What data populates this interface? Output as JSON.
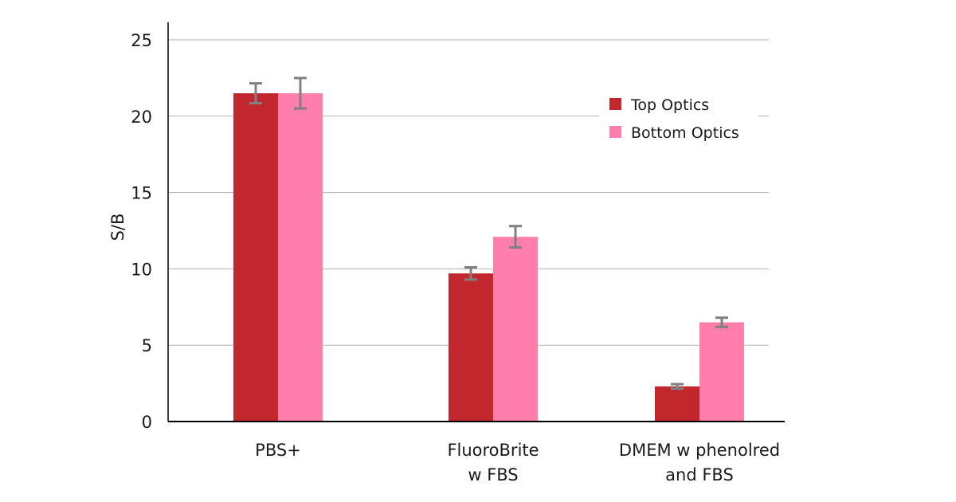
{
  "chart_data": {
    "type": "bar",
    "title": "",
    "xlabel": "",
    "ylabel": "S/B",
    "ylim": [
      0,
      25
    ],
    "yticks": [
      0,
      5,
      10,
      15,
      20,
      25
    ],
    "grid": true,
    "legend_position": "top-right",
    "categories": [
      [
        "PBS+"
      ],
      [
        "FluoroBrite",
        "w FBS"
      ],
      [
        "DMEM w phenolred",
        "and FBS"
      ]
    ],
    "series": [
      {
        "name": "Top Optics",
        "color": "#c1272d",
        "values": [
          21.5,
          9.7,
          2.3
        ],
        "errors": [
          0.65,
          0.4,
          0.15
        ]
      },
      {
        "name": "Bottom Optics",
        "color": "#ff7eab",
        "values": [
          21.5,
          12.1,
          6.5
        ],
        "errors": [
          1.0,
          0.7,
          0.3
        ]
      }
    ],
    "error_bar_color": "#808080"
  }
}
